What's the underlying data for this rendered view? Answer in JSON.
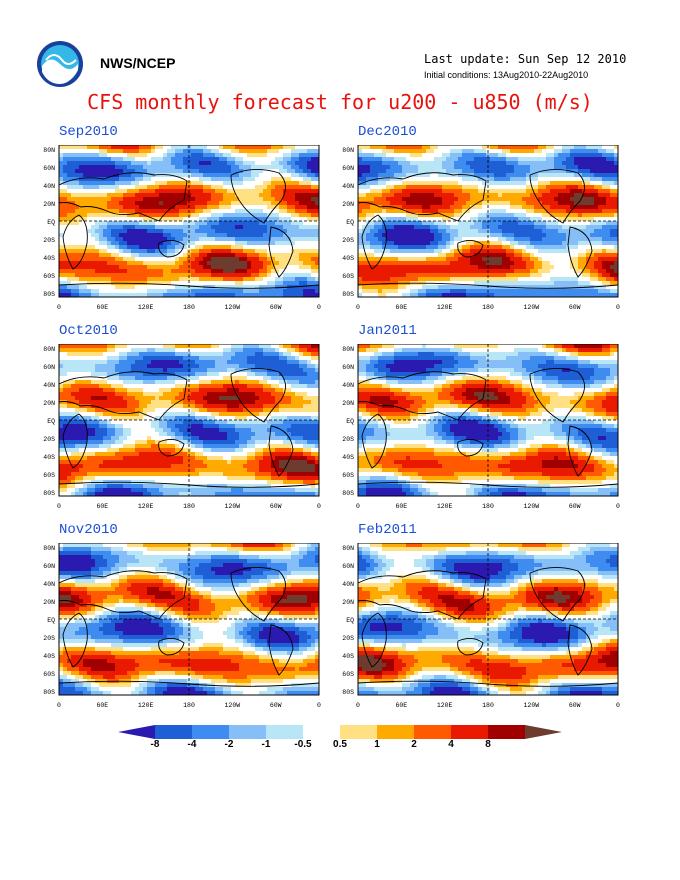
{
  "header": {
    "org": "NWS/NCEP",
    "last_update": "Last update: Sun Sep 12 2010",
    "initial_conditions": "Initial conditions: 13Aug2010-22Aug2010",
    "title": "CFS monthly forecast for u200 - u850 (m/s)"
  },
  "axes": {
    "lat_ticks": [
      "80N",
      "60N",
      "40N",
      "20N",
      "EQ",
      "20S",
      "40S",
      "60S",
      "80S"
    ],
    "lon_ticks": [
      "0",
      "60E",
      "120E",
      "180",
      "120W",
      "60W",
      "0"
    ]
  },
  "panels": [
    {
      "title": "Sep2010"
    },
    {
      "title": "Dec2010"
    },
    {
      "title": "Oct2010"
    },
    {
      "title": "Jan2011"
    },
    {
      "title": "Nov2010"
    },
    {
      "title": "Feb2011"
    }
  ],
  "colorbar": {
    "labels": [
      "-8",
      "-4",
      "-2",
      "-1",
      "-0.5",
      "0.5",
      "1",
      "2",
      "4",
      "8"
    ],
    "colors": [
      "#2b1ab0",
      "#1f5fd6",
      "#3f8cf0",
      "#86bff7",
      "#b8e6f7",
      "#ffffff",
      "#ffe184",
      "#ffaa00",
      "#ff5a00",
      "#ea1a00",
      "#a00000",
      "#6e3c2e"
    ]
  },
  "style": {
    "title_color": "#e8120c",
    "panel_title_color": "#1c4fd6"
  }
}
